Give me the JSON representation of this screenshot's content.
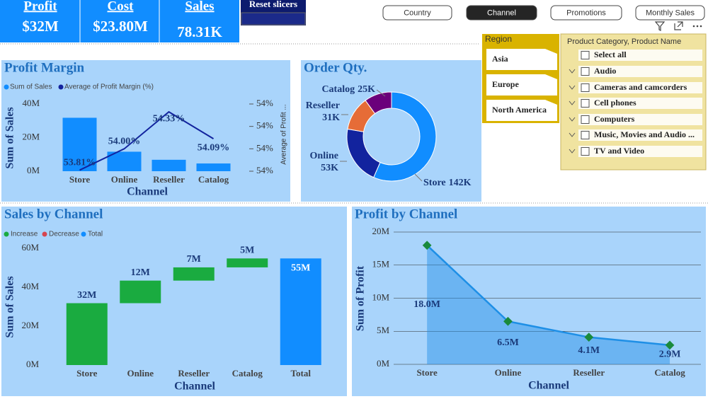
{
  "kpis": [
    {
      "title": "Profit",
      "value": "$32M"
    },
    {
      "title": "Cost",
      "value": "$23.80M"
    },
    {
      "title": "Sales",
      "value": "78.31K"
    }
  ],
  "reset_button": "Reset slicers",
  "tabs": [
    {
      "label": "Country"
    },
    {
      "label": "Channel",
      "selected": true
    },
    {
      "label": "Promotions"
    },
    {
      "label": "Monthly Sales"
    }
  ],
  "region_slicer": {
    "title": "Region",
    "items": [
      "Asia",
      "Europe",
      "North America"
    ]
  },
  "product_slicer": {
    "title": "Product Category, Product Name",
    "items": [
      "Select all",
      "Audio",
      "Cameras and camcorders",
      "Cell phones",
      "Computers",
      "Music, Movies and Audio ...",
      "TV and Video"
    ]
  },
  "chart_data": [
    {
      "type": "bar",
      "title": "Profit Margin",
      "x_label": "Channel",
      "y_label": "Sum of Sales",
      "y2_label": "Average of Profit ...",
      "categories": [
        "Store",
        "Online",
        "Reseller",
        "Catalog"
      ],
      "series": [
        {
          "name": "Sum of Sales",
          "color": "#118dff",
          "values": [
            31800000,
            11600000,
            6800000,
            4600000
          ]
        },
        {
          "name": "Average of Profit Margin (%)",
          "color": "#12239e",
          "type": "line",
          "axis": "y2",
          "values": [
            53.81,
            54.0,
            54.33,
            54.09
          ],
          "value_labels": [
            "53.81%",
            "54.00%",
            "54.33%",
            "54.09%"
          ]
        }
      ],
      "ylim": [
        0,
        40000000
      ],
      "yticks": [
        {
          "value": 0,
          "label": "0M"
        },
        {
          "value": 20000000,
          "label": "20M"
        },
        {
          "value": 40000000,
          "label": "40M"
        }
      ],
      "y2lim": [
        53.8,
        54.4
      ],
      "y2ticks": [
        {
          "value": 53.8,
          "label": "54%"
        },
        {
          "value": 54.0,
          "label": "54%"
        },
        {
          "value": 54.2,
          "label": "54%"
        },
        {
          "value": 54.4,
          "label": "54%"
        }
      ]
    },
    {
      "type": "donut",
      "title": "Order Qty.",
      "categories": [
        "Store",
        "Online",
        "Reseller",
        "Catalog"
      ],
      "values": [
        142,
        53,
        31,
        25
      ],
      "value_labels": [
        "142K",
        "53K",
        "31K",
        "25K"
      ],
      "colors": [
        "#118dff",
        "#12239e",
        "#e66c37",
        "#6b007b"
      ]
    },
    {
      "type": "waterfall",
      "title": "Sales by Channel",
      "x_label": "Channel",
      "y_label": "Sum of Sales",
      "legend": [
        {
          "name": "Increase",
          "color": "#1aab40"
        },
        {
          "name": "Decrease",
          "color": "#d64550"
        },
        {
          "name": "Total",
          "color": "#118dff"
        }
      ],
      "categories": [
        "Store",
        "Online",
        "Reseller",
        "Catalog",
        "Total"
      ],
      "values": [
        31800000,
        11600000,
        6800000,
        4600000,
        54800000
      ],
      "value_labels": [
        "32M",
        "12M",
        "7M",
        "5M",
        "55M"
      ],
      "ylim": [
        0,
        60000000
      ],
      "yticks": [
        {
          "value": 0,
          "label": "0M"
        },
        {
          "value": 20000000,
          "label": "20M"
        },
        {
          "value": 40000000,
          "label": "40M"
        },
        {
          "value": 60000000,
          "label": "60M"
        }
      ]
    },
    {
      "type": "area",
      "title": "Profit by Channel",
      "x_label": "Channel",
      "y_label": "Sum of Profit",
      "categories": [
        "Store",
        "Online",
        "Reseller",
        "Catalog"
      ],
      "values": [
        18000000,
        6500000,
        4100000,
        2900000
      ],
      "value_labels": [
        "18.0M",
        "6.5M",
        "4.1M",
        "2.9M"
      ],
      "color": "#1e8fe6",
      "marker_color": "#1a8a3c",
      "grid": true,
      "ylim": [
        0,
        20000000
      ],
      "yticks": [
        {
          "value": 0,
          "label": "0M"
        },
        {
          "value": 5000000,
          "label": "5M"
        },
        {
          "value": 10000000,
          "label": "10M"
        },
        {
          "value": 15000000,
          "label": "15M"
        },
        {
          "value": 20000000,
          "label": "20M"
        }
      ]
    }
  ]
}
